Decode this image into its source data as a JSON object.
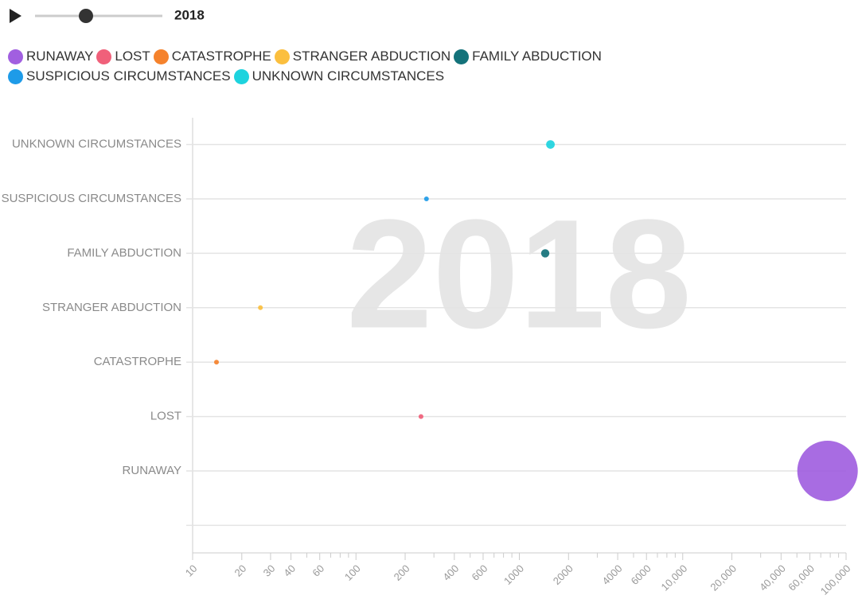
{
  "chart_data": {
    "type": "bubble",
    "year": "2018",
    "categories": [
      "RUNAWAY",
      "LOST",
      "CATASTROPHE",
      "STRANGER ABDUCTION",
      "FAMILY ABDUCTION",
      "SUSPICIOUS CIRCUMSTANCES",
      "UNKNOWN CIRCUMSTANCES"
    ],
    "values": [
      77000,
      250,
      14,
      26,
      1440,
      270,
      1550
    ],
    "colors": [
      "#a15fe0",
      "#f0607a",
      "#f5822c",
      "#fbbf3e",
      "#13727a",
      "#1e9be8",
      "#1dd3de"
    ],
    "xscale": "log",
    "xlim": [
      10,
      100000
    ],
    "xticks": [
      10,
      20,
      30,
      40,
      60,
      100,
      200,
      400,
      600,
      1000,
      2000,
      4000,
      6000,
      {
        "value": 10000,
        "label": "10,000"
      },
      {
        "value": 20000,
        "label": "20,000"
      },
      {
        "value": 40000,
        "label": "40,000"
      },
      {
        "value": 60000,
        "label": "60,000"
      },
      {
        "value": 100000,
        "label": "100,000"
      }
    ],
    "xminorticks": [
      50,
      70,
      80,
      90,
      300,
      500,
      700,
      800,
      900,
      3000,
      5000,
      7000,
      8000,
      9000,
      30000,
      50000,
      70000,
      80000,
      90000
    ],
    "grid": true
  }
}
